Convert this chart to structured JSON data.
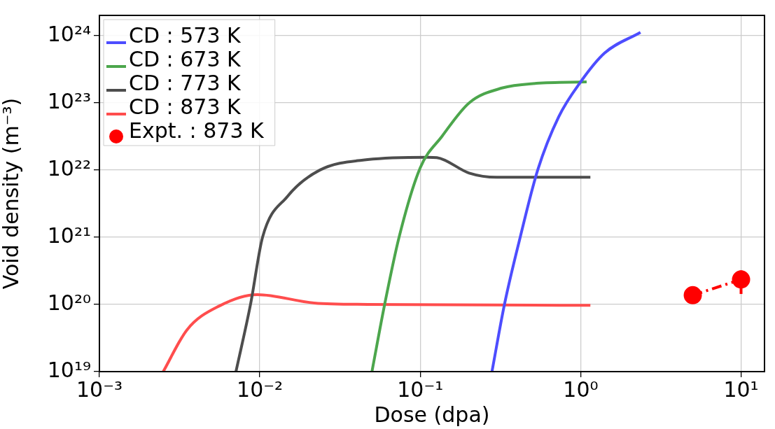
{
  "chart_data": {
    "type": "line",
    "xlabel": "Dose (dpa)",
    "ylabel": "Void density (m⁻³)",
    "log": "xy",
    "grid": true,
    "legend": "top left",
    "xlim": [
      0.001,
      14
    ],
    "xticks": [
      {
        "value": 0.001,
        "label": "10⁻³"
      },
      {
        "value": 0.01,
        "label": "10⁻²"
      },
      {
        "value": 0.1,
        "label": "10⁻¹"
      },
      {
        "value": 1,
        "label": "10⁰"
      },
      {
        "value": 10,
        "label": "10¹"
      }
    ],
    "ylim": [
      1e+19,
      2e+24
    ],
    "yticks": [
      {
        "value": 1e+19,
        "label": "10¹⁹"
      },
      {
        "value": 1e+20,
        "label": "10²⁰"
      },
      {
        "value": 1e+21,
        "label": "10²¹"
      },
      {
        "value": 1e+22,
        "label": "10²²"
      },
      {
        "value": 1e+23,
        "label": "10²³"
      },
      {
        "value": 1e+24,
        "label": "10²⁴"
      }
    ],
    "series": [
      {
        "name": "CD : 573 K",
        "type": "line",
        "color": "#4d4dff",
        "x": [
          0.28,
          0.335,
          0.42,
          0.54,
          0.73,
          1,
          1.41,
          2.36
        ],
        "values": [
          1e+19,
          1e+20,
          1e+21,
          1e+22,
          6.2e+22,
          2.05e+23,
          5.5e+23,
          1.12e+24
        ]
      },
      {
        "name": "CD : 673 K",
        "type": "line",
        "color": "#4ca64c",
        "x": [
          0.05,
          0.06,
          0.0738,
          0.1,
          0.137,
          0.202,
          0.323,
          0.53,
          1.09
        ],
        "values": [
          1e+19,
          1e+20,
          1e+21,
          1.08e+22,
          3.2e+22,
          1e+23,
          1.66e+23,
          1.95e+23,
          2.05e+23
        ]
      },
      {
        "name": "CD : 773 K",
        "type": "line",
        "color": "#4d4d4d",
        "x": [
          0.0071,
          0.00875,
          0.0104,
          0.0148,
          0.0235,
          0.047,
          0.111,
          0.127,
          0.202,
          0.3,
          1.15
        ],
        "values": [
          1e+19,
          1e+20,
          1e+21,
          4e+21,
          9.9e+21,
          1.43e+22,
          1.55e+22,
          1.53e+22,
          9e+21,
          7.8e+21,
          7.8e+21
        ]
      },
      {
        "name": "CD : 873 K",
        "type": "line",
        "color": "#ff4d4d",
        "x": [
          0.0025,
          0.00352,
          0.0056,
          0.00965,
          0.0218,
          0.047,
          1.15
        ],
        "values": [
          1e+19,
          4.2e+19,
          9.5e+19,
          1.4e+20,
          1.05e+20,
          1e+20,
          9.7e+19
        ]
      },
      {
        "name": "Expt. : 873 K",
        "type": "line",
        "color": "#ff0000",
        "marker": "circle",
        "line_style": "dashed",
        "x": [
          5,
          10
        ],
        "values": [
          1.37e+20,
          2.35e+20
        ],
        "errors": [
          [
            1.05e+20,
            1.7e+20
          ],
          [
            1.43e+20,
            3.2e+20
          ]
        ]
      }
    ]
  }
}
